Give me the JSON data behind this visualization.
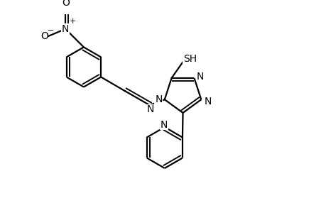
{
  "bg_color": "#ffffff",
  "line_color": "#000000",
  "line_width": 1.6,
  "font_size": 10,
  "figsize": [
    4.6,
    3.0
  ],
  "dpi": 100,
  "xlim": [
    0,
    9.2
  ],
  "ylim": [
    -3.0,
    3.0
  ]
}
